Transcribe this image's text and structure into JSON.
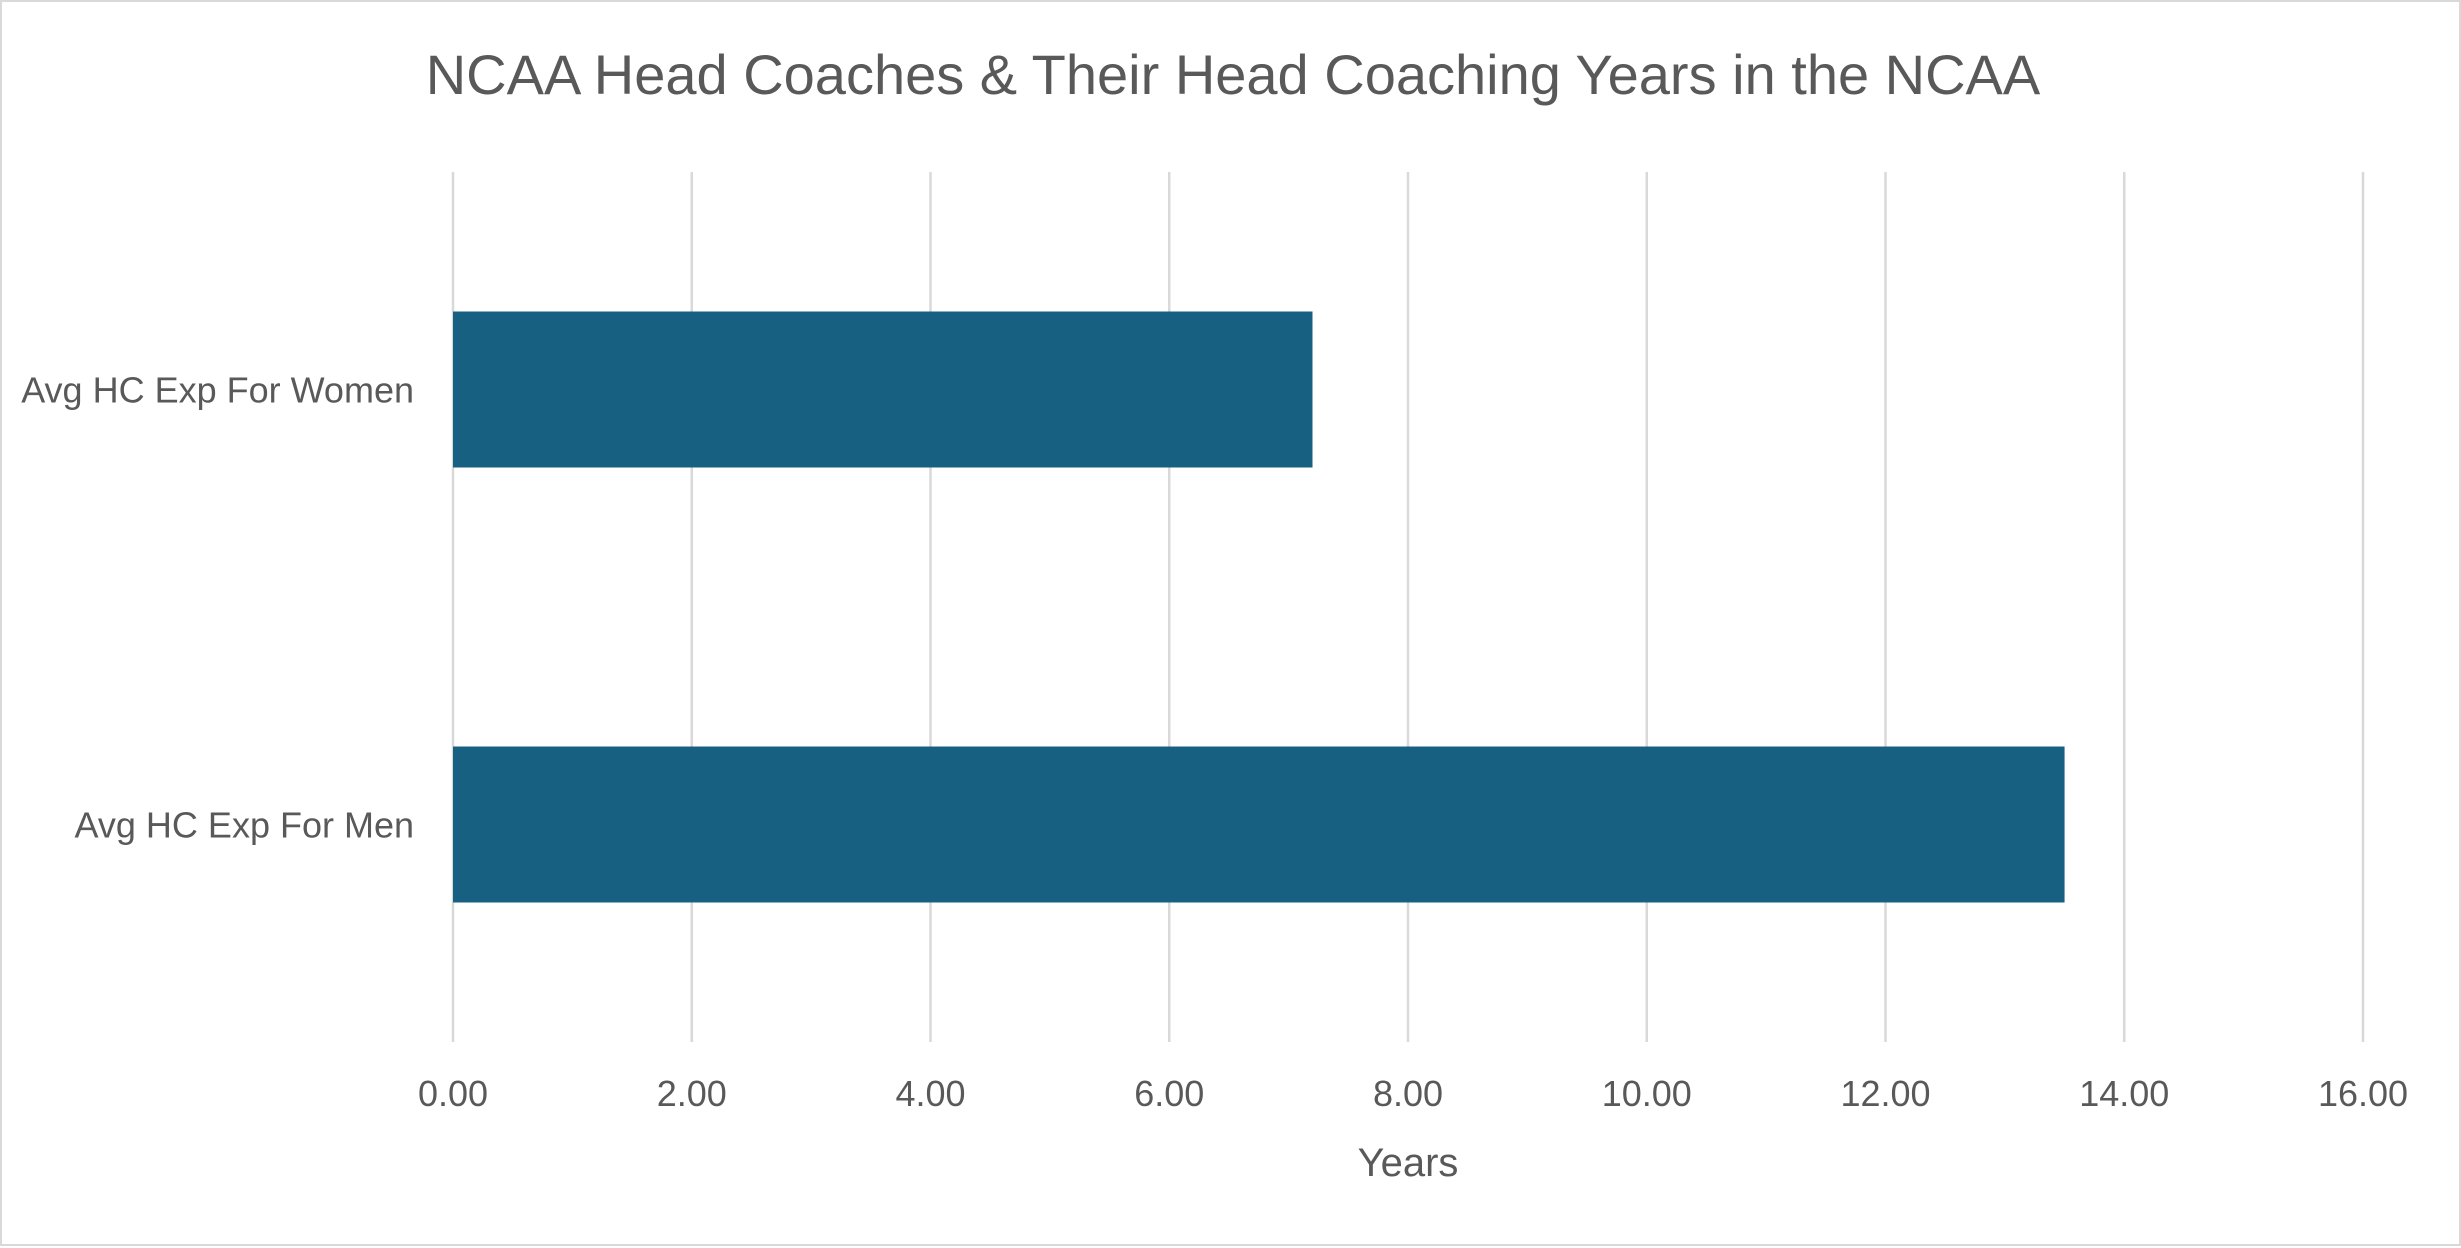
{
  "chart_data": {
    "type": "bar",
    "orientation": "horizontal",
    "title": "NCAA Head Coaches & Their Head Coaching Years in the NCAA",
    "xlabel": "Years",
    "ylabel": "",
    "categories": [
      "Avg HC Exp For Women",
      "Avg HC Exp For Men"
    ],
    "values": [
      7.2,
      13.5
    ],
    "xlim": [
      0,
      16
    ],
    "xticks": [
      "0.00",
      "2.00",
      "4.00",
      "6.00",
      "8.00",
      "10.00",
      "12.00",
      "14.00",
      "16.00"
    ],
    "grid": "vertical",
    "legend": "none",
    "bar_color": "#176082"
  }
}
